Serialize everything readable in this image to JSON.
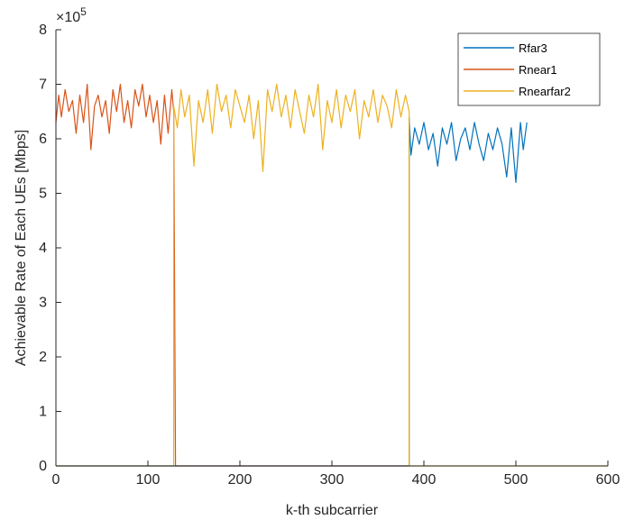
{
  "chart_data": {
    "type": "line",
    "title": "",
    "xlabel": "k-th subcarrier",
    "ylabel": "Achievable Rate of Each UEs [Mbps]",
    "xlim": [
      0,
      600
    ],
    "ylim": [
      0,
      8
    ],
    "xticks": [
      "0",
      "100",
      "200",
      "300",
      "400",
      "500",
      "600"
    ],
    "yticks": [
      "0",
      "1",
      "2",
      "3",
      "4",
      "5",
      "6",
      "7",
      "8"
    ],
    "y_exponent_prefix": "×10",
    "y_exponent_power": "5",
    "grid": false,
    "legend_position": "top-right",
    "series": [
      {
        "name": "Rfar3",
        "color": "#0072BD",
        "x": [
          0,
          384,
          384,
          386,
          390,
          395,
          400,
          405,
          410,
          415,
          420,
          425,
          430,
          435,
          440,
          445,
          450,
          455,
          460,
          465,
          470,
          475,
          480,
          485,
          490,
          495,
          500,
          505,
          508,
          512
        ],
        "values": [
          0,
          0,
          6.38,
          5.7,
          6.2,
          5.9,
          6.3,
          5.8,
          6.1,
          5.5,
          6.2,
          5.9,
          6.3,
          5.6,
          6.0,
          6.2,
          5.8,
          6.3,
          5.9,
          5.6,
          6.1,
          5.8,
          6.2,
          5.9,
          5.3,
          6.2,
          5.2,
          6.3,
          5.8,
          6.3
        ]
      },
      {
        "name": "Rnear1",
        "color": "#D95319",
        "x": [
          0,
          3,
          6,
          10,
          14,
          18,
          22,
          26,
          30,
          34,
          38,
          42,
          46,
          50,
          54,
          58,
          62,
          66,
          70,
          74,
          78,
          82,
          86,
          90,
          94,
          98,
          102,
          106,
          110,
          114,
          118,
          122,
          126,
          128,
          130,
          384
        ],
        "values": [
          6.3,
          6.8,
          6.4,
          6.9,
          6.5,
          6.7,
          6.1,
          6.8,
          6.3,
          7.0,
          5.8,
          6.6,
          6.8,
          6.4,
          6.7,
          6.1,
          6.9,
          6.5,
          7.0,
          6.3,
          6.7,
          6.2,
          6.9,
          6.6,
          7.0,
          6.4,
          6.8,
          6.3,
          6.7,
          5.9,
          6.8,
          6.1,
          6.9,
          6.5,
          0,
          0
        ]
      },
      {
        "name": "Rnearfar2",
        "color": "#EDB120",
        "x": [
          0,
          128,
          128,
          132,
          136,
          140,
          145,
          150,
          155,
          160,
          165,
          170,
          175,
          180,
          185,
          190,
          195,
          200,
          205,
          210,
          215,
          220,
          225,
          230,
          235,
          240,
          245,
          250,
          255,
          260,
          265,
          270,
          275,
          280,
          285,
          290,
          295,
          300,
          305,
          310,
          315,
          320,
          325,
          330,
          335,
          340,
          345,
          350,
          355,
          360,
          365,
          370,
          375,
          380,
          384,
          384,
          600
        ],
        "values": [
          0,
          0,
          6.6,
          6.2,
          6.9,
          6.4,
          6.8,
          5.5,
          6.7,
          6.3,
          6.9,
          6.1,
          7.0,
          6.5,
          6.8,
          6.2,
          6.9,
          6.6,
          6.3,
          6.8,
          6.0,
          6.7,
          5.4,
          6.9,
          6.5,
          7.0,
          6.4,
          6.8,
          6.2,
          6.9,
          6.5,
          6.1,
          6.8,
          6.4,
          7.0,
          5.8,
          6.7,
          6.3,
          6.9,
          6.2,
          6.8,
          6.5,
          6.9,
          6.0,
          6.7,
          6.4,
          6.9,
          6.3,
          6.8,
          6.6,
          6.2,
          6.9,
          6.4,
          6.8,
          6.5,
          0,
          0
        ]
      }
    ]
  }
}
